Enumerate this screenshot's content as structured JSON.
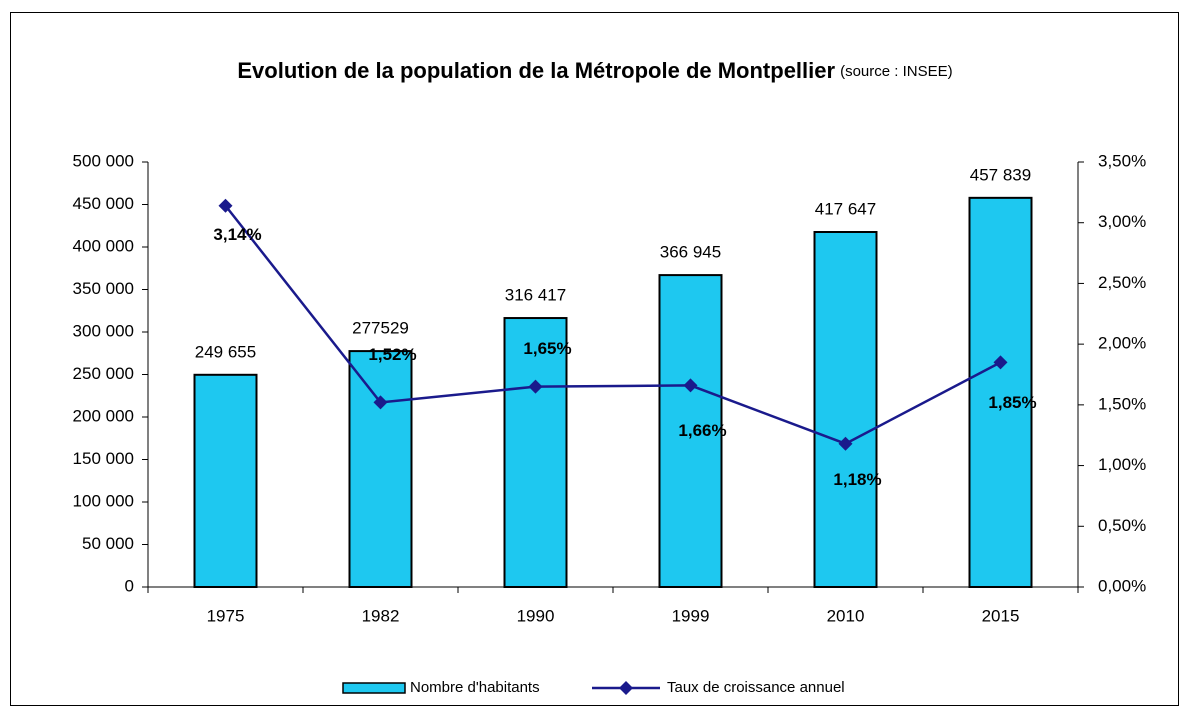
{
  "chart_data": {
    "type": "combo",
    "title": "Evolution de la population de la Métropole de Montpellier",
    "subtitle": "(source : INSEE)",
    "categories": [
      "1975",
      "1982",
      "1990",
      "1999",
      "2010",
      "2015"
    ],
    "series": [
      {
        "name": "Nombre d'habitants",
        "type": "bar",
        "color": "#1ec8f0",
        "values": [
          249655,
          277529,
          316417,
          366945,
          417647,
          457839
        ],
        "value_labels": [
          "249 655",
          "277529",
          "316 417",
          "366 945",
          "417 647",
          "457 839"
        ]
      },
      {
        "name": "Taux de croissance annuel",
        "type": "line",
        "axis": "y2",
        "color": "#1a1a8c",
        "values": [
          3.14,
          1.52,
          1.65,
          1.66,
          1.18,
          1.85
        ],
        "value_labels": [
          "3,14%",
          "1,52%",
          "1,65%",
          "1,66%",
          "1,18%",
          "1,85%"
        ]
      }
    ],
    "ylim": [
      0,
      500000
    ],
    "yticks": [
      0,
      {
        "value": 50000,
        "label": "50 000"
      },
      {
        "value": 100000,
        "label": "100 000"
      },
      {
        "value": 150000,
        "label": "150 000"
      },
      {
        "value": 200000,
        "label": "200 000"
      },
      {
        "value": 250000,
        "label": "250 000"
      },
      {
        "value": 300000,
        "label": "300 000"
      },
      {
        "value": 350000,
        "label": "350 000"
      },
      {
        "value": 400000,
        "label": "400 000"
      },
      {
        "value": 450000,
        "label": "450 000"
      },
      {
        "value": 500000,
        "label": "500 000"
      }
    ],
    "y2lim": [
      0,
      3.5
    ],
    "y2ticks": [
      {
        "value": 0,
        "label": "0,00%"
      },
      {
        "value": 0.5,
        "label": "0,50%"
      },
      {
        "value": 1,
        "label": "1,00%"
      },
      {
        "value": 1.5,
        "label": "1,50%"
      },
      {
        "value": 2,
        "label": "2,00%"
      },
      {
        "value": 2.5,
        "label": "2,50%"
      },
      {
        "value": 3,
        "label": "3,00%"
      },
      {
        "value": 3.5,
        "label": "3,50%"
      }
    ],
    "legend": "bottom"
  }
}
